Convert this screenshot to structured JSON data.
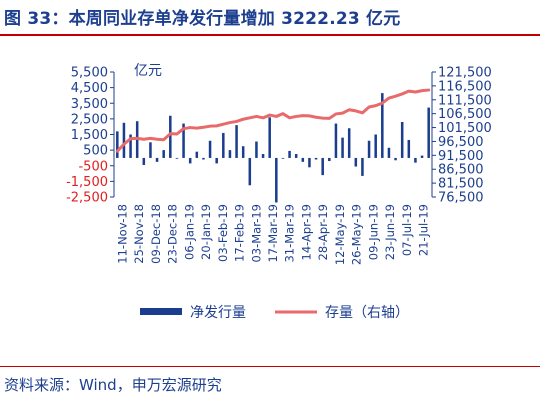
{
  "title": "图 33：本周同业存单净发行量增加 3222.23 亿元",
  "source": "资料来源：Wind，申万宏源研究",
  "colors": {
    "bar": "#1b3d8f",
    "line": "#e86a6a",
    "axis": "#1d3f8f",
    "negative_tick": "#e02020",
    "title": "#1d3f8f",
    "rule": "#c00000"
  },
  "chart_data": {
    "type": "bar",
    "unit_label": "亿元",
    "left_axis": {
      "ticks": [
        "5,500",
        "4,500",
        "3,500",
        "2,500",
        "1,500",
        "500",
        "-500",
        "-1,500",
        "-2,500"
      ],
      "ylim": [
        -2500,
        5500
      ]
    },
    "right_axis": {
      "ticks": [
        "121,500",
        "116,500",
        "111,500",
        "106,500",
        "101,500",
        "96,500",
        "91,500",
        "86,500",
        "81,500",
        "76,500"
      ],
      "ylim": [
        76500,
        121500
      ]
    },
    "x_tick_labels": [
      "11-Nov-18",
      "25-Nov-18",
      "09-Dec-18",
      "23-Dec-18",
      "06-Jan-19",
      "20-Jan-19",
      "03-Feb-19",
      "17-Feb-19",
      "03-Mar-19",
      "17-Mar-19",
      "31-Mar-19",
      "14-Apr-19",
      "28-Apr-19",
      "12-May-19",
      "26-May-19",
      "09-Jun-19",
      "23-Jun-19",
      "07-Jul-19",
      "21-Jul-19"
    ],
    "series": [
      {
        "name": "净发行量",
        "type": "bar",
        "axis": "left",
        "values": [
          1700,
          2250,
          1500,
          2350,
          -450,
          1000,
          -250,
          500,
          2700,
          -50,
          2200,
          -350,
          400,
          -100,
          1100,
          -350,
          1600,
          500,
          2100,
          750,
          -1750,
          1050,
          250,
          2600,
          -2850,
          -50,
          450,
          250,
          -250,
          -600,
          -100,
          -1100,
          -200,
          2200,
          1300,
          1900,
          -550,
          -1150,
          1100,
          1500,
          4150,
          650,
          -150,
          2300,
          1150,
          -300,
          150,
          3222.23
        ]
      },
      {
        "name": "存量（右轴）",
        "type": "line",
        "axis": "right",
        "values": [
          93000,
          95500,
          97500,
          97600,
          97300,
          97600,
          97300,
          97100,
          99300,
          99200,
          101100,
          101500,
          101300,
          101600,
          102000,
          102100,
          102700,
          103300,
          103700,
          104500,
          105000,
          105500,
          105000,
          106000,
          105500,
          106500,
          105000,
          105500,
          105800,
          105700,
          105200,
          104900,
          104800,
          106400,
          106700,
          107900,
          107500,
          106800,
          108900,
          109400,
          110300,
          112100,
          112800,
          113600,
          114600,
          114300,
          114800,
          115000
        ]
      }
    ]
  }
}
